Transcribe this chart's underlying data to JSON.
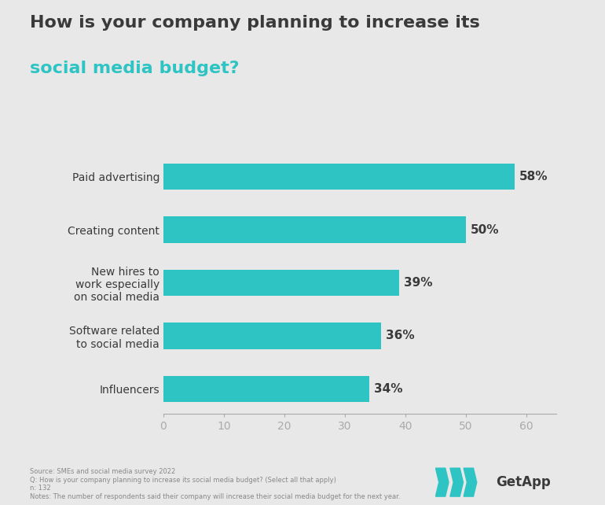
{
  "title_line1": "How is your company planning to increase its",
  "title_line2": "social media budget?",
  "title_color1": "#3a3a3a",
  "title_color2": "#2ec4c4",
  "categories": [
    "Influencers",
    "Software related\nto social media",
    "New hires to\nwork especially\non social media",
    "Creating content",
    "Paid advertising"
  ],
  "values": [
    34,
    36,
    39,
    50,
    58
  ],
  "labels": [
    "34%",
    "36%",
    "39%",
    "50%",
    "58%"
  ],
  "bar_color": "#2ec4c4",
  "xlim": [
    0,
    65
  ],
  "xticks": [
    0,
    10,
    20,
    30,
    40,
    50,
    60
  ],
  "background_color": "#e8e8e8",
  "footnote_lines": [
    "Source: SMEs and social media survey 2022",
    "Q: How is your company planning to increase its social media budget? (Select all that apply)",
    "n: 132",
    "Notes: The number of respondents said their company will increase their social media budget for the next year."
  ],
  "label_fontsize": 11,
  "tick_fontsize": 10,
  "category_fontsize": 10,
  "title_fontsize": 16
}
